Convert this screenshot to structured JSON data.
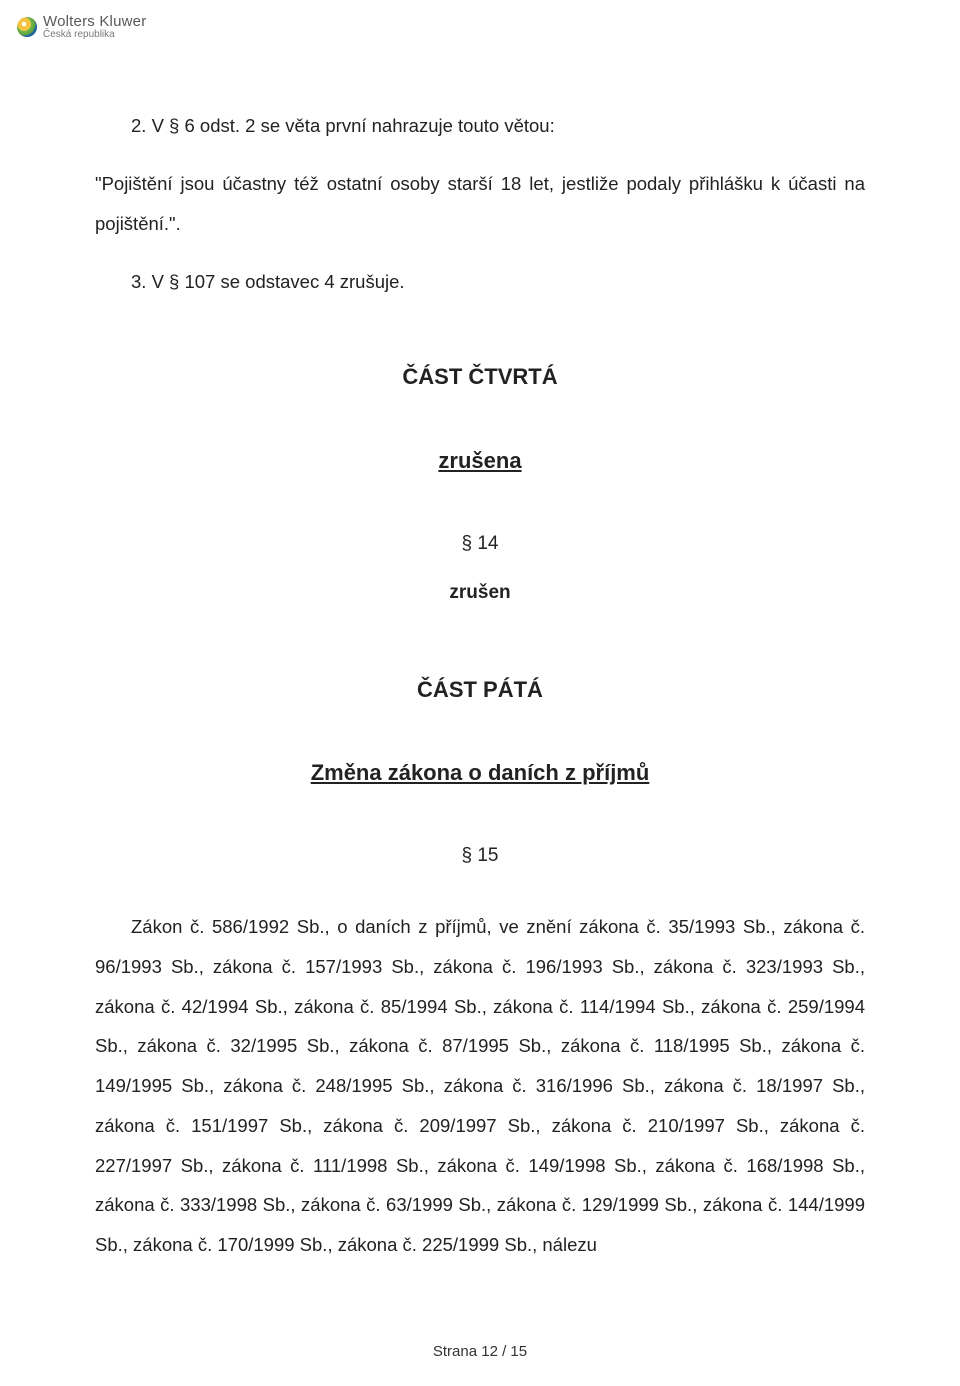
{
  "header": {
    "brand_main": "Wolters Kluwer",
    "brand_sub": "Česká republika"
  },
  "para1": "2. V § 6 odst. 2 se věta první nahrazuje touto větou:",
  "para2": "\"Pojištění jsou účastny též ostatní osoby starší 18 let, jestliže podaly přihlášku k účasti na pojištění.\".",
  "para3": "3. V § 107 se odstavec 4 zrušuje.",
  "part4": {
    "title": "ČÁST ČTVRTÁ",
    "subtitle": "zrušena",
    "section_num": "§ 14",
    "section_status": "zrušen"
  },
  "part5": {
    "title": "ČÁST PÁTÁ",
    "subtitle": "Změna zákona o daních z příjmů",
    "section_num": "§ 15"
  },
  "long_text": "Zákon č. 586/1992 Sb., o daních z příjmů, ve znění zákona č. 35/1993 Sb., zákona č. 96/1993 Sb., zákona č. 157/1993 Sb., zákona č. 196/1993 Sb., zákona č. 323/1993 Sb., zákona č. 42/1994 Sb., zákona č. 85/1994 Sb., zákona č. 114/1994 Sb., zákona č. 259/1994 Sb., zákona č. 32/1995 Sb., zákona č. 87/1995 Sb., zákona č. 118/1995 Sb., zákona č. 149/1995 Sb., zákona č. 248/1995 Sb., zákona č. 316/1996 Sb., zákona č. 18/1997 Sb., zákona č. 151/1997 Sb., zákona č. 209/1997 Sb., zákona č. 210/1997 Sb., zákona č. 227/1997 Sb., zákona č. 111/1998 Sb., zákona č. 149/1998 Sb., zákona č. 168/1998 Sb., zákona č. 333/1998 Sb., zákona č. 63/1999 Sb., zákona č. 129/1999 Sb., zákona č. 144/1999 Sb., zákona č. 170/1999 Sb., zákona č. 225/1999 Sb., nálezu",
  "footer": "Strana 12 / 15"
}
